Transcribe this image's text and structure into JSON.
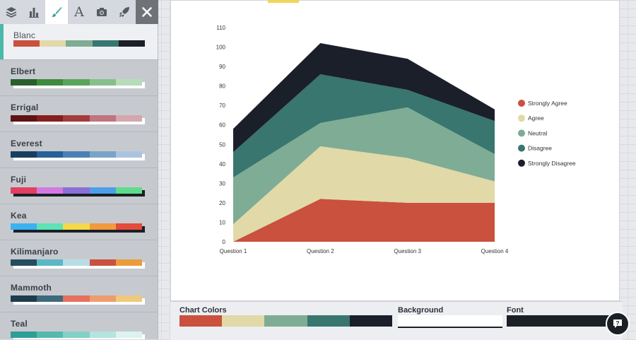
{
  "toolbar": {
    "items": [
      {
        "name": "layers-icon",
        "active": false
      },
      {
        "name": "bar-chart-icon",
        "active": false
      },
      {
        "name": "paintbrush-icon",
        "active": true
      },
      {
        "name": "text-icon",
        "active": false,
        "glyph": "A"
      },
      {
        "name": "camera-icon",
        "active": false
      },
      {
        "name": "rocket-icon",
        "active": false
      }
    ],
    "close_icon": "close-icon"
  },
  "palettes": [
    {
      "name": "Blanc",
      "selected": true,
      "colors": [
        "#c9513d",
        "#e2d9a8",
        "#7fac94",
        "#38766f",
        "#1b1f2a"
      ]
    },
    {
      "name": "Elbert",
      "colors": [
        "#295f2c",
        "#3f8a3c",
        "#5aa55a",
        "#86bf8a",
        "#b7dcb9"
      ]
    },
    {
      "name": "Errigal",
      "colors": [
        "#5d1414",
        "#861e1e",
        "#a53c3c",
        "#c07480",
        "#d4a6ae"
      ]
    },
    {
      "name": "Everest",
      "colors": [
        "#173e5f",
        "#27609a",
        "#4a80b5",
        "#7aa3c9",
        "#a9c4df"
      ]
    },
    {
      "name": "Fuji",
      "dark_shadow": true,
      "colors": [
        "#e23f63",
        "#d379e4",
        "#8b6fd6",
        "#4d9ee8",
        "#5fdc8a"
      ]
    },
    {
      "name": "Kea",
      "dark_shadow": true,
      "colors": [
        "#3bb2f0",
        "#5de3b6",
        "#f4d94a",
        "#f19a3e",
        "#e44b3c"
      ]
    },
    {
      "name": "Kilimanjaro",
      "colors": [
        "#264d5f",
        "#5bb7c3",
        "#b6dde4",
        "#c9513d",
        "#eb9c3b"
      ]
    },
    {
      "name": "Mammoth",
      "colors": [
        "#1e3c4b",
        "#3e6a7c",
        "#e5705e",
        "#ee9c6e",
        "#eec97b"
      ]
    },
    {
      "name": "Teal",
      "colors": [
        "#2e9f96",
        "#55b9ae",
        "#85d0c6",
        "#b3e4dd",
        "#dcf3ef"
      ]
    }
  ],
  "chart_data": {
    "type": "area",
    "stacked": true,
    "categories": [
      "Question 1",
      "Question 2",
      "Question 3",
      "Question 4"
    ],
    "series": [
      {
        "name": "Strongly Agree",
        "color": "#c9513d",
        "values": [
          0,
          22,
          20,
          20
        ]
      },
      {
        "name": "Agree",
        "color": "#e2d9a8",
        "values": [
          9,
          27,
          23,
          11
        ]
      },
      {
        "name": "Neutral",
        "color": "#7fac94",
        "values": [
          24,
          12,
          26,
          14
        ]
      },
      {
        "name": "Disagree",
        "color": "#38766f",
        "values": [
          13,
          25,
          9,
          17
        ]
      },
      {
        "name": "Strongly Disagree",
        "color": "#1b1f2a",
        "values": [
          12,
          16,
          16,
          6
        ]
      }
    ],
    "ylim": [
      0,
      110
    ],
    "yticks": [
      0,
      10,
      20,
      30,
      40,
      50,
      60,
      70,
      80,
      90,
      100,
      110
    ],
    "title": "",
    "xlabel": "",
    "ylabel": "",
    "legend_position": "right",
    "grid": false
  },
  "bottom_bar": {
    "chart_colors_label": "Chart Colors",
    "chart_colors": [
      "#c9513d",
      "#e2d9a8",
      "#7fac94",
      "#38766f",
      "#1b1f2a"
    ],
    "background_label": "Background",
    "background_color": "#ffffff",
    "font_label": "Font",
    "font_color": "#1b1f26"
  },
  "help": {
    "icon": "help-icon",
    "glyph": "?"
  }
}
